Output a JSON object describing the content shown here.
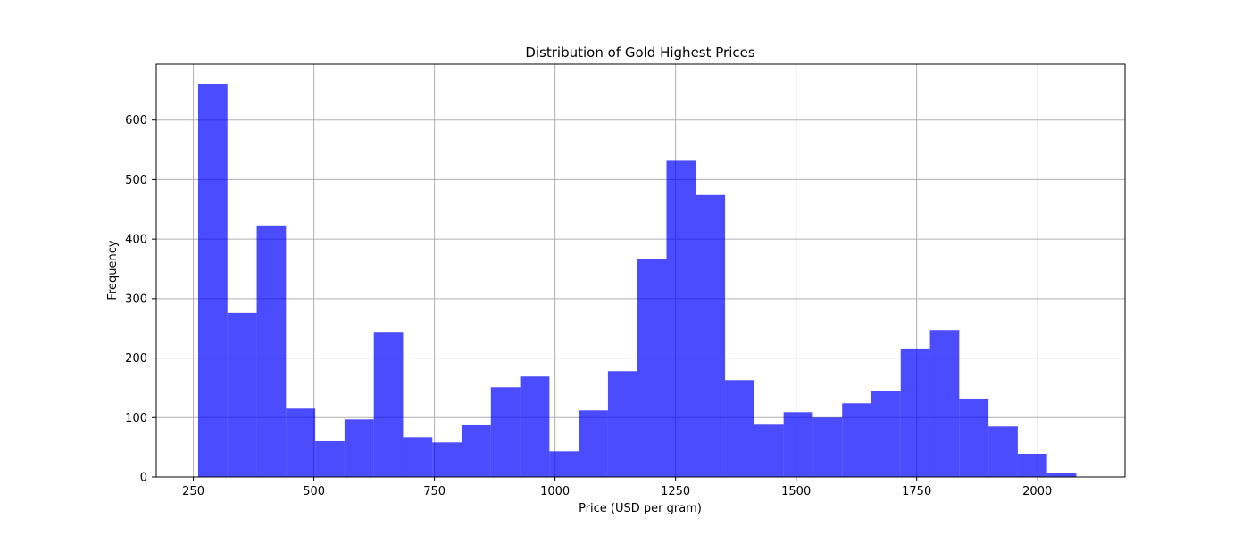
{
  "chart_data": {
    "type": "bar",
    "title": "Distribution of Gold Highest Prices",
    "xlabel": "Price (USD per gram)",
    "ylabel": "Frequency",
    "xlim": [
      173,
      2182
    ],
    "ylim": [
      0,
      694
    ],
    "xticks": [
      250,
      500,
      750,
      1000,
      1250,
      1500,
      1750,
      2000
    ],
    "yticks": [
      0,
      100,
      200,
      300,
      400,
      500,
      600
    ],
    "grid": true,
    "bar_color": "#0000ff",
    "bar_opacity": 0.7,
    "bins": [
      {
        "x0": 260.0,
        "x1": 320.7,
        "value": 661
      },
      {
        "x0": 320.7,
        "x1": 381.4,
        "value": 276
      },
      {
        "x0": 381.4,
        "x1": 442.1,
        "value": 423
      },
      {
        "x0": 442.1,
        "x1": 502.8,
        "value": 115
      },
      {
        "x0": 502.8,
        "x1": 563.5,
        "value": 60
      },
      {
        "x0": 563.5,
        "x1": 624.2,
        "value": 97
      },
      {
        "x0": 624.2,
        "x1": 684.9,
        "value": 244
      },
      {
        "x0": 684.9,
        "x1": 745.6,
        "value": 67
      },
      {
        "x0": 745.6,
        "x1": 806.3,
        "value": 58
      },
      {
        "x0": 806.3,
        "x1": 867.0,
        "value": 87
      },
      {
        "x0": 867.0,
        "x1": 927.7,
        "value": 151
      },
      {
        "x0": 927.7,
        "x1": 988.4,
        "value": 169
      },
      {
        "x0": 988.4,
        "x1": 1049.1,
        "value": 43
      },
      {
        "x0": 1049.1,
        "x1": 1109.8,
        "value": 112
      },
      {
        "x0": 1109.8,
        "x1": 1170.5,
        "value": 178
      },
      {
        "x0": 1170.5,
        "x1": 1231.2,
        "value": 366
      },
      {
        "x0": 1231.2,
        "x1": 1291.9,
        "value": 533
      },
      {
        "x0": 1291.9,
        "x1": 1352.6,
        "value": 474
      },
      {
        "x0": 1352.6,
        "x1": 1413.3,
        "value": 163
      },
      {
        "x0": 1413.3,
        "x1": 1474.0,
        "value": 88
      },
      {
        "x0": 1474.0,
        "x1": 1534.7,
        "value": 109
      },
      {
        "x0": 1534.7,
        "x1": 1595.4,
        "value": 100
      },
      {
        "x0": 1595.4,
        "x1": 1656.1,
        "value": 124
      },
      {
        "x0": 1656.1,
        "x1": 1716.8,
        "value": 145
      },
      {
        "x0": 1716.8,
        "x1": 1777.5,
        "value": 216
      },
      {
        "x0": 1777.5,
        "x1": 1838.2,
        "value": 247
      },
      {
        "x0": 1838.2,
        "x1": 1898.9,
        "value": 132
      },
      {
        "x0": 1898.9,
        "x1": 1959.6,
        "value": 85
      },
      {
        "x0": 1959.6,
        "x1": 2020.3,
        "value": 39
      },
      {
        "x0": 2020.3,
        "x1": 2081.0,
        "value": 6
      }
    ]
  }
}
